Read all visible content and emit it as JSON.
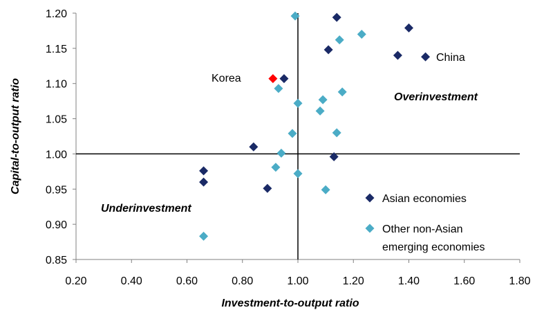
{
  "chart_data": {
    "type": "scatter",
    "xlabel": "Investment-to-output ratio",
    "ylabel": "Capital-to-output ratio",
    "xlim": [
      0.2,
      1.8
    ],
    "ylim": [
      0.85,
      1.2
    ],
    "xticks": [
      "0.20",
      "0.40",
      "0.60",
      "0.80",
      "1.00",
      "1.20",
      "1.40",
      "1.60",
      "1.80"
    ],
    "yticks": [
      "0.85",
      "0.90",
      "0.95",
      "1.00",
      "1.05",
      "1.10",
      "1.15",
      "1.20"
    ],
    "reference_lines": {
      "x": 1.0,
      "y": 1.0
    },
    "grid": false,
    "legend_position": "bottom-right",
    "series": [
      {
        "name": "Asian economies",
        "color": "#1a2a66",
        "marker": "diamond",
        "points": [
          {
            "x": 1.14,
            "y": 1.194
          },
          {
            "x": 1.4,
            "y": 1.179
          },
          {
            "x": 1.11,
            "y": 1.148
          },
          {
            "x": 1.36,
            "y": 1.14
          },
          {
            "x": 1.46,
            "y": 1.138
          },
          {
            "x": 0.95,
            "y": 1.107
          },
          {
            "x": 0.84,
            "y": 1.01
          },
          {
            "x": 1.13,
            "y": 0.996
          },
          {
            "x": 0.66,
            "y": 0.976
          },
          {
            "x": 0.66,
            "y": 0.96
          },
          {
            "x": 0.89,
            "y": 0.951
          }
        ]
      },
      {
        "name": "Other non-Asian emerging economies",
        "legend_lines": [
          "Other non-Asian",
          "emerging economies"
        ],
        "color": "#4bacc6",
        "marker": "diamond",
        "points": [
          {
            "x": 0.99,
            "y": 1.196
          },
          {
            "x": 1.23,
            "y": 1.17
          },
          {
            "x": 1.15,
            "y": 1.162
          },
          {
            "x": 0.93,
            "y": 1.093
          },
          {
            "x": 1.16,
            "y": 1.088
          },
          {
            "x": 1.09,
            "y": 1.077
          },
          {
            "x": 1.0,
            "y": 1.072
          },
          {
            "x": 1.08,
            "y": 1.061
          },
          {
            "x": 0.98,
            "y": 1.029
          },
          {
            "x": 1.14,
            "y": 1.03
          },
          {
            "x": 0.94,
            "y": 1.001
          },
          {
            "x": 0.92,
            "y": 0.981
          },
          {
            "x": 1.0,
            "y": 0.972
          },
          {
            "x": 1.1,
            "y": 0.949
          },
          {
            "x": 0.66,
            "y": 0.883
          }
        ]
      },
      {
        "name": "Korea",
        "color": "#ff0000",
        "marker": "diamond",
        "in_legend": false,
        "points": [
          {
            "x": 0.91,
            "y": 1.107
          }
        ]
      }
    ],
    "annotations": {
      "korea": "Korea",
      "china": "China",
      "overinvestment": "Overinvestment",
      "underinvestment": "Underinvestment"
    }
  }
}
